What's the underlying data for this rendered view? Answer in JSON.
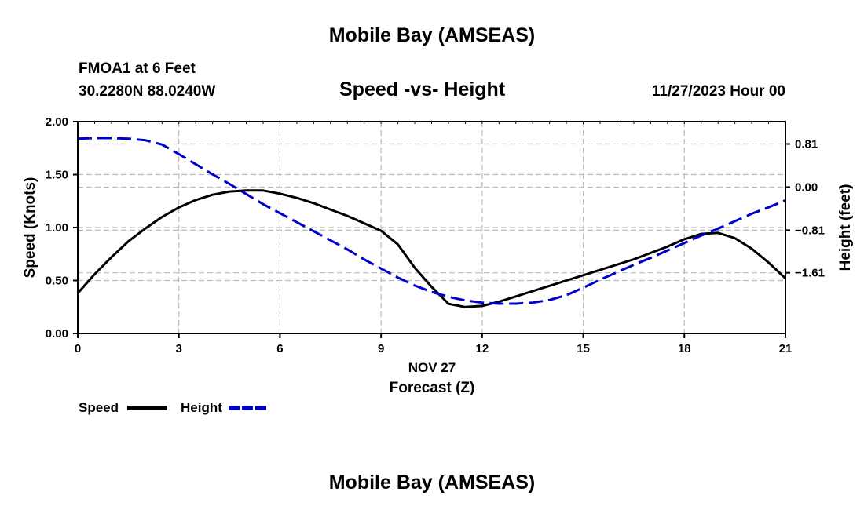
{
  "page": {
    "title_top": "Mobile Bay (AMSEAS)",
    "title_bottom": "Mobile Bay (AMSEAS)"
  },
  "station": {
    "name_depth": "FMOA1 at 6 Feet",
    "coords": "30.2280N  88.0240W",
    "datetime": "11/27/2023 Hour 00"
  },
  "chart_data": {
    "type": "line",
    "title": "Speed -vs- Height",
    "xlabel": "Forecast (Z)",
    "date_label": "NOV 27",
    "ylabel": "Speed (Knots)",
    "y2label": "Height (feet)",
    "x_ticks": [
      0,
      3,
      6,
      9,
      12,
      15,
      18,
      21
    ],
    "x_tick_labels": [
      "0",
      "3",
      "6",
      "9",
      "12",
      "15",
      "18",
      "21"
    ],
    "xlim": [
      0,
      21
    ],
    "ylim": [
      0,
      2.0
    ],
    "y_ticks": [
      0,
      0.5,
      1.0,
      1.5,
      2.0
    ],
    "y_tick_labels": [
      "0.00",
      "0.50",
      "1.00",
      "1.50",
      "2.00"
    ],
    "y2lim": [
      -2.75,
      1.23
    ],
    "y2_ticks": [
      0.81,
      0.0,
      -0.81,
      -1.61
    ],
    "y2_tick_labels": [
      "0.81",
      "0.00",
      "−0.81",
      "−1.61"
    ],
    "grid": true,
    "series": [
      {
        "name": "Speed",
        "axis": "left",
        "color": "#000000",
        "dash": "solid",
        "x": [
          0,
          0.5,
          1,
          1.5,
          2,
          2.5,
          3,
          3.5,
          4,
          4.5,
          5,
          5.5,
          6,
          6.5,
          7,
          7.5,
          8,
          8.5,
          9,
          9.5,
          10,
          10.5,
          11,
          11.5,
          12,
          12.5,
          13,
          13.5,
          14,
          14.5,
          15,
          15.5,
          16,
          16.5,
          17,
          17.5,
          18,
          18.5,
          19,
          19.5,
          20,
          20.5,
          21
        ],
        "values": [
          0.38,
          0.56,
          0.72,
          0.87,
          0.99,
          1.1,
          1.19,
          1.26,
          1.31,
          1.34,
          1.35,
          1.35,
          1.32,
          1.28,
          1.23,
          1.17,
          1.11,
          1.04,
          0.97,
          0.84,
          0.62,
          0.44,
          0.28,
          0.25,
          0.26,
          0.3,
          0.35,
          0.4,
          0.45,
          0.5,
          0.55,
          0.6,
          0.65,
          0.7,
          0.76,
          0.82,
          0.89,
          0.94,
          0.95,
          0.9,
          0.8,
          0.67,
          0.52
        ]
      },
      {
        "name": "Height",
        "axis": "right",
        "color": "#0000cc",
        "dash": "dashed",
        "x": [
          0,
          0.5,
          1,
          1.5,
          2,
          2.5,
          3,
          3.5,
          4,
          4.5,
          5,
          5.5,
          6,
          6.5,
          7,
          7.5,
          8,
          8.5,
          9,
          9.5,
          10,
          10.5,
          11,
          11.5,
          12,
          12.5,
          13,
          13.5,
          14,
          14.5,
          15,
          15.5,
          16,
          16.5,
          17,
          17.5,
          18,
          18.5,
          19,
          19.5,
          20,
          20.5,
          21
        ],
        "values": [
          0.91,
          0.92,
          0.92,
          0.91,
          0.88,
          0.8,
          0.62,
          0.43,
          0.24,
          0.06,
          -0.13,
          -0.32,
          -0.49,
          -0.66,
          -0.83,
          -1.0,
          -1.17,
          -1.36,
          -1.53,
          -1.7,
          -1.85,
          -1.97,
          -2.06,
          -2.13,
          -2.17,
          -2.19,
          -2.19,
          -2.17,
          -2.12,
          -2.03,
          -1.89,
          -1.74,
          -1.6,
          -1.46,
          -1.33,
          -1.19,
          -1.05,
          -0.91,
          -0.78,
          -0.64,
          -0.5,
          -0.38,
          -0.25
        ]
      }
    ],
    "legend": [
      {
        "label": "Speed",
        "color": "#000000",
        "style": "solid"
      },
      {
        "label": "Height",
        "color": "#0000cc",
        "style": "dashed"
      }
    ]
  }
}
